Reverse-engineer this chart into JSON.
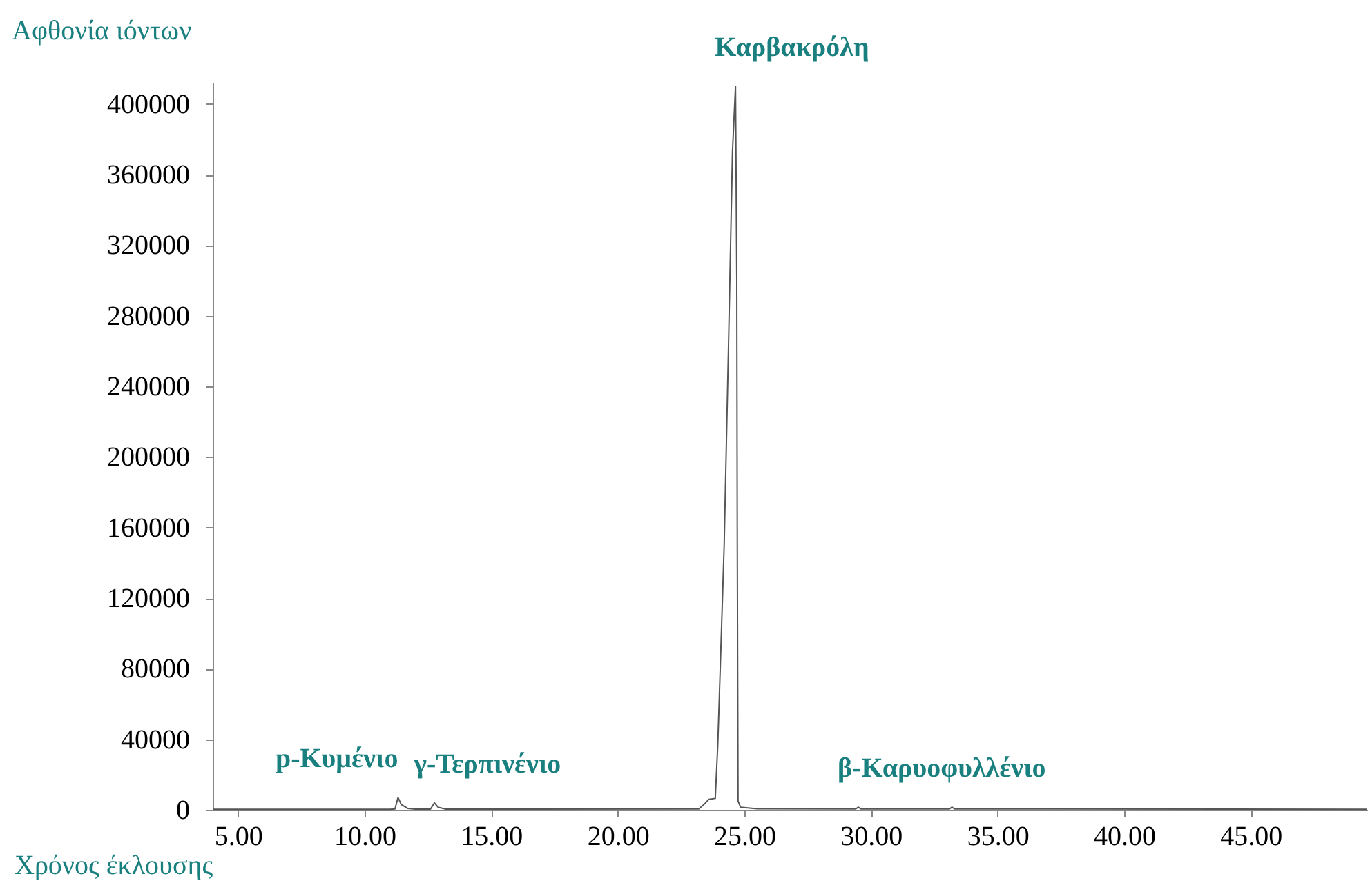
{
  "chart_data": {
    "type": "line",
    "xlabel": "Χρόνος έκλουσης",
    "ylabel": "Αφθονία ιόντων",
    "x": [
      4.0,
      11.0,
      11.2,
      11.32,
      11.45,
      11.7,
      12.0,
      12.6,
      12.76,
      12.9,
      13.2,
      23.2,
      23.4,
      23.6,
      23.85,
      23.95,
      24.2,
      24.37,
      24.53,
      24.65,
      24.7,
      24.72,
      24.75,
      24.85,
      25.5,
      29.4,
      29.5,
      29.6,
      33.1,
      33.2,
      33.3,
      49.6
    ],
    "series": [
      {
        "color": "#555555",
        "values": [
          300,
          300,
          500,
          7000,
          3000,
          800,
          400,
          400,
          4000,
          1500,
          400,
          500,
          3000,
          6000,
          6500,
          37000,
          149000,
          261000,
          373000,
          410000,
          300000,
          150000,
          5000,
          1500,
          600,
          500,
          1500,
          500,
          500,
          1500,
          500,
          300
        ]
      }
    ],
    "xlim": [
      4.0,
      49.6
    ],
    "xticks": [
      {
        "value": 5,
        "label": "5.00"
      },
      {
        "value": 10,
        "label": "10.00"
      },
      {
        "value": 15,
        "label": "15.00"
      },
      {
        "value": 20,
        "label": "20.00"
      },
      {
        "value": 25,
        "label": "25.00"
      },
      {
        "value": 30,
        "label": "30.00"
      },
      {
        "value": 35,
        "label": "35.00"
      },
      {
        "value": 40,
        "label": "40.00"
      },
      {
        "value": 45,
        "label": "45.00"
      }
    ],
    "ylim": [
      0,
      412000
    ],
    "yticks": [
      0,
      40000,
      80000,
      120000,
      160000,
      200000,
      240000,
      280000,
      320000,
      360000,
      400000
    ],
    "annotations": [
      {
        "text": "p-Κυμένιο",
        "x": 11.32,
        "y": 7000
      },
      {
        "text": "γ-Τερπινένιο",
        "x": 12.76,
        "y": 4000
      },
      {
        "text": "Καρβακρόλη",
        "x": 24.65,
        "y": 410000
      },
      {
        "text": "β-Καρυοφυλλένιο",
        "x": 29.5,
        "y": 1500
      }
    ],
    "grid": false,
    "marker": "none",
    "line_style": "solid"
  }
}
